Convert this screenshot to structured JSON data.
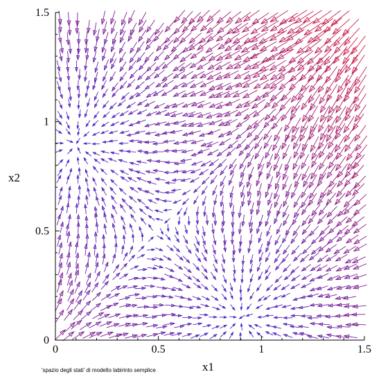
{
  "chart_data": {
    "type": "vector-field",
    "xlabel": "x1",
    "ylabel": "x2",
    "xlim": [
      0,
      1.5
    ],
    "ylim": [
      0,
      1.5
    ],
    "x_ticks": [
      "0",
      "0.5",
      "1",
      "1.5"
    ],
    "y_ticks": [
      "0",
      "0.5",
      "1",
      "1.5"
    ],
    "caption": "'spazio degli stati' di modello labirinto semplice",
    "grid": false,
    "arrow_style": "hollow-triangle",
    "field": {
      "description_points": [
        {
          "x": 0.1,
          "y": 0.9,
          "note": "attractor"
        },
        {
          "x": 0.45,
          "y": 0.55,
          "note": "saddle"
        },
        {
          "x": 0.9,
          "y": 0.1,
          "note": "attractor"
        }
      ]
    },
    "colors": {
      "low_magnitude": "#3a1fd0",
      "high_magnitude": "#ef1f2a"
    }
  }
}
